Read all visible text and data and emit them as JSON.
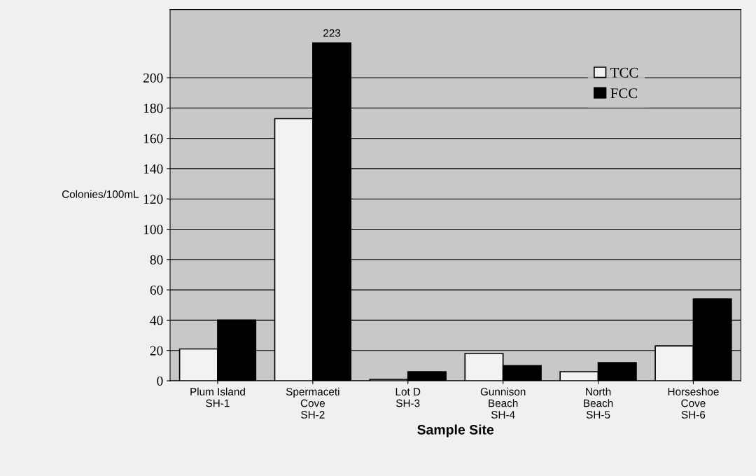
{
  "chart_data": {
    "type": "bar",
    "xlabel": "Sample Site",
    "ylabel": "Colonies/100mL",
    "categories": [
      "Plum Island\nSH-1",
      "Spermaceti\nCove\nSH-2",
      "Lot D\nSH-3",
      "Gunnison\nBeach\nSH-4",
      "North\nBeach\nSH-5",
      "Horseshoe\nCove\nSH-6"
    ],
    "series": [
      {
        "name": "TCC",
        "color": "#f2f2f2",
        "values": [
          21,
          173,
          1,
          18,
          6,
          23
        ]
      },
      {
        "name": "FCC",
        "color": "#000000",
        "values": [
          40,
          223,
          6,
          10,
          12,
          54
        ],
        "value_labels": [
          null,
          "223",
          null,
          null,
          null,
          null
        ]
      }
    ],
    "ylim": [
      0,
      245
    ],
    "yticks": [
      0,
      20,
      40,
      60,
      80,
      100,
      120,
      140,
      160,
      180,
      200
    ],
    "grid": "y",
    "legend": "top right"
  }
}
